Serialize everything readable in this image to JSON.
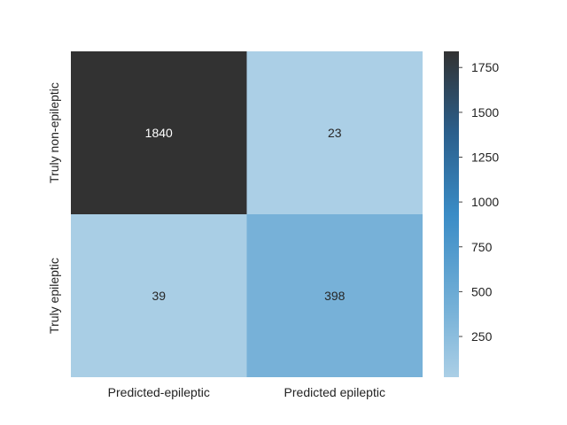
{
  "chart_data": {
    "type": "heatmap",
    "row_labels": [
      "Truly non-epileptic",
      "Truly epileptic"
    ],
    "col_labels": [
      "Predicted-epileptic",
      "Predicted epileptic"
    ],
    "values": [
      [
        1840,
        23
      ],
      [
        39,
        398
      ]
    ],
    "annotations": [
      "1840",
      "23",
      "39",
      "398"
    ],
    "colorbar": {
      "min": 23,
      "max": 1840,
      "ticks": [
        250,
        500,
        750,
        1000,
        1250,
        1500,
        1750
      ],
      "tick_labels": [
        "250",
        "500",
        "750",
        "1000",
        "1250",
        "1500",
        "1750"
      ]
    },
    "colormap": [
      {
        "t": 0.0,
        "color": "#abcfe6"
      },
      {
        "t": 0.2,
        "color": "#78b2d8"
      },
      {
        "t": 0.5,
        "color": "#3a8cc6"
      },
      {
        "t": 0.75,
        "color": "#2b5f8c"
      },
      {
        "t": 1.0,
        "color": "#323232"
      }
    ],
    "grid": false
  }
}
